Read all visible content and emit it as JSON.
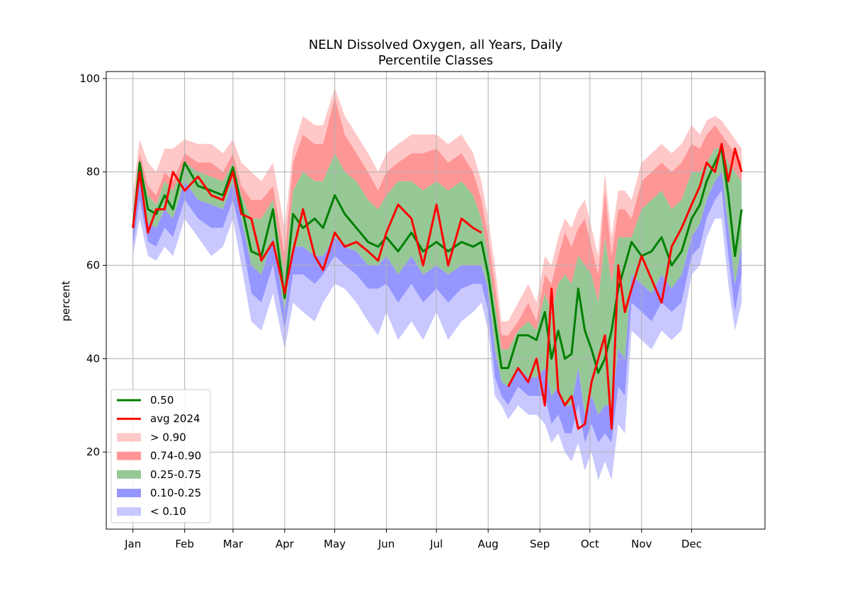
{
  "chart_data": {
    "type": "area",
    "title": "NELN Dissolved Oxygen, all Years, Daily",
    "subtitle": "Percentile Classes",
    "xlabel": "",
    "ylabel": "percent",
    "xlim": [
      -15,
      380
    ],
    "ylim": [
      3.5,
      101.5
    ],
    "x_ticks": [
      {
        "label": "Jan",
        "day": 1
      },
      {
        "label": "Feb",
        "day": 32
      },
      {
        "label": "Mar",
        "day": 61
      },
      {
        "label": "Apr",
        "day": 92
      },
      {
        "label": "May",
        "day": 122
      },
      {
        "label": "Jun",
        "day": 153
      },
      {
        "label": "Jul",
        "day": 183
      },
      {
        "label": "Aug",
        "day": 214
      },
      {
        "label": "Sep",
        "day": 245
      },
      {
        "label": "Oct",
        "day": 275
      },
      {
        "label": "Nov",
        "day": 306
      },
      {
        "label": "Dec",
        "day": 336
      }
    ],
    "y_ticks": [
      20,
      40,
      60,
      80,
      100
    ],
    "grid": true,
    "legend_position": "bottom-left",
    "x": [
      1,
      5,
      10,
      15,
      20,
      25,
      32,
      40,
      48,
      55,
      61,
      66,
      72,
      78,
      85,
      92,
      97,
      103,
      110,
      115,
      122,
      128,
      135,
      142,
      148,
      153,
      160,
      168,
      175,
      183,
      190,
      198,
      205,
      210,
      214,
      218,
      222,
      226,
      232,
      238,
      243,
      248,
      252,
      256,
      260,
      264,
      268,
      272,
      276,
      280,
      284,
      288,
      292,
      296,
      300,
      306,
      312,
      318,
      324,
      330,
      336,
      341,
      345,
      350,
      354,
      358,
      362,
      366
    ],
    "series": [
      {
        "name": "0.50",
        "color": "#008000",
        "values": [
          68,
          82,
          72,
          71,
          75,
          72,
          82,
          77,
          76,
          75,
          81,
          73,
          63,
          62,
          72,
          53,
          71,
          68,
          70,
          68,
          75,
          71,
          68,
          65,
          64,
          66,
          63,
          67,
          63,
          65,
          63,
          65,
          64,
          65,
          58,
          48,
          38,
          38,
          45,
          45,
          44,
          50,
          40,
          46,
          40,
          41,
          55,
          46,
          42,
          37,
          40,
          46,
          55,
          60,
          65,
          62,
          63,
          66,
          60,
          63,
          70,
          73,
          78,
          82,
          85,
          75,
          62,
          72
        ],
        "color_hint": "green"
      },
      {
        "name": "avg 2024",
        "color": "#ff0000",
        "values": [
          68,
          80,
          67,
          72,
          72,
          80,
          76,
          79,
          75,
          74,
          80,
          71,
          70,
          61,
          65,
          54,
          63,
          72,
          62,
          59,
          67,
          64,
          65,
          63,
          61,
          67,
          73,
          70,
          60,
          73,
          60,
          70,
          68,
          67,
          null,
          null,
          null,
          34,
          38,
          35,
          40,
          30,
          55,
          33,
          30,
          32,
          25,
          26,
          35,
          40,
          45,
          25,
          60,
          50,
          55,
          62,
          57,
          52,
          64,
          68,
          73,
          77,
          82,
          80,
          86,
          78,
          85,
          80
        ]
      }
    ],
    "bands": [
      {
        "name": "> 0.90",
        "color": "#ffc8c8",
        "lower": [
          70,
          84,
          77,
          75,
          80,
          78,
          84,
          82,
          82,
          80,
          84,
          77,
          74,
          74,
          77,
          62,
          82,
          88,
          86,
          86,
          96,
          88,
          84,
          80,
          76,
          80,
          82,
          84,
          84,
          85,
          82,
          84,
          80,
          74,
          66,
          56,
          45,
          45,
          48,
          52,
          48,
          58,
          56,
          62,
          67,
          64,
          68,
          70,
          64,
          58,
          76,
          62,
          72,
          72,
          70,
          78,
          80,
          82,
          80,
          82,
          86,
          85,
          88,
          90,
          88,
          86,
          84,
          82
        ],
        "upper": [
          75,
          87,
          82,
          80,
          85,
          85,
          87,
          86,
          86,
          84,
          87,
          82,
          80,
          78,
          82,
          68,
          85,
          92,
          90,
          90,
          98,
          92,
          88,
          84,
          80,
          84,
          86,
          88,
          88,
          88,
          86,
          88,
          84,
          78,
          70,
          60,
          48,
          48,
          52,
          56,
          52,
          62,
          60,
          66,
          70,
          68,
          72,
          74,
          68,
          62,
          80,
          66,
          76,
          76,
          74,
          82,
          84,
          86,
          84,
          86,
          90,
          88,
          91,
          92,
          91,
          89,
          87,
          85
        ]
      },
      {
        "name": "0.74-0.90",
        "color": "#ff9696",
        "lower": [
          69,
          82,
          75,
          73,
          78,
          76,
          82,
          80,
          79,
          78,
          82,
          75,
          70,
          70,
          74,
          58,
          76,
          80,
          78,
          78,
          84,
          80,
          78,
          74,
          72,
          75,
          78,
          78,
          76,
          78,
          76,
          78,
          75,
          70,
          62,
          52,
          42,
          42,
          46,
          48,
          46,
          54,
          50,
          56,
          58,
          56,
          62,
          60,
          58,
          52,
          66,
          56,
          66,
          66,
          66,
          72,
          74,
          76,
          72,
          74,
          80,
          80,
          82,
          85,
          85,
          82,
          80,
          78
        ],
        "upper": [
          70,
          84,
          77,
          75,
          80,
          78,
          84,
          82,
          82,
          80,
          84,
          77,
          74,
          74,
          77,
          62,
          82,
          88,
          86,
          86,
          96,
          88,
          84,
          80,
          76,
          80,
          82,
          84,
          84,
          85,
          82,
          84,
          80,
          74,
          66,
          56,
          45,
          45,
          48,
          52,
          48,
          58,
          56,
          62,
          67,
          64,
          68,
          70,
          64,
          58,
          76,
          62,
          72,
          72,
          70,
          78,
          80,
          82,
          80,
          82,
          86,
          85,
          88,
          90,
          88,
          86,
          84,
          82
        ]
      },
      {
        "name": "0.25-0.75",
        "color": "#96c896",
        "lower": [
          67,
          78,
          69,
          68,
          72,
          70,
          78,
          74,
          73,
          72,
          78,
          70,
          60,
          58,
          66,
          50,
          64,
          64,
          62,
          62,
          66,
          64,
          63,
          60,
          60,
          62,
          58,
          62,
          58,
          60,
          58,
          60,
          60,
          60,
          55,
          42,
          35,
          34,
          38,
          36,
          36,
          38,
          32,
          34,
          30,
          30,
          38,
          28,
          32,
          28,
          30,
          30,
          42,
          40,
          58,
          56,
          54,
          58,
          55,
          58,
          66,
          69,
          74,
          78,
          80,
          68,
          56,
          64
        ],
        "upper": [
          69,
          82,
          75,
          73,
          78,
          76,
          82,
          80,
          79,
          78,
          82,
          75,
          70,
          70,
          74,
          58,
          76,
          80,
          78,
          78,
          84,
          80,
          78,
          74,
          72,
          75,
          78,
          78,
          76,
          78,
          76,
          78,
          75,
          70,
          62,
          52,
          42,
          42,
          46,
          48,
          46,
          54,
          50,
          56,
          58,
          56,
          62,
          60,
          58,
          52,
          66,
          56,
          66,
          66,
          66,
          72,
          74,
          76,
          72,
          74,
          80,
          80,
          82,
          85,
          85,
          82,
          80,
          78
        ]
      },
      {
        "name": "0.10-0.25",
        "color": "#9696ff",
        "lower": [
          64,
          74,
          65,
          64,
          68,
          66,
          74,
          70,
          68,
          68,
          74,
          66,
          54,
          52,
          60,
          46,
          58,
          58,
          56,
          58,
          62,
          60,
          58,
          55,
          55,
          56,
          52,
          56,
          52,
          55,
          52,
          55,
          56,
          56,
          50,
          36,
          32,
          30,
          34,
          32,
          32,
          32,
          26,
          28,
          24,
          24,
          30,
          22,
          26,
          22,
          24,
          22,
          34,
          32,
          52,
          50,
          48,
          52,
          50,
          52,
          62,
          64,
          70,
          74,
          76,
          62,
          50,
          58
        ],
        "upper": [
          67,
          78,
          69,
          68,
          72,
          70,
          78,
          74,
          73,
          72,
          78,
          70,
          60,
          58,
          66,
          50,
          64,
          64,
          62,
          62,
          66,
          64,
          63,
          60,
          60,
          62,
          58,
          62,
          58,
          60,
          58,
          60,
          60,
          60,
          55,
          42,
          35,
          34,
          38,
          36,
          36,
          38,
          32,
          34,
          30,
          30,
          38,
          28,
          32,
          28,
          30,
          30,
          42,
          40,
          58,
          56,
          54,
          58,
          55,
          58,
          66,
          69,
          74,
          78,
          80,
          68,
          56,
          64
        ]
      },
      {
        "name": "< 0.10",
        "color": "#c8c8ff",
        "lower": [
          62,
          70,
          62,
          61,
          64,
          62,
          70,
          66,
          62,
          64,
          70,
          60,
          48,
          46,
          54,
          42,
          52,
          50,
          48,
          52,
          56,
          55,
          52,
          48,
          45,
          50,
          44,
          48,
          44,
          50,
          44,
          48,
          50,
          52,
          46,
          32,
          30,
          27,
          30,
          28,
          28,
          26,
          22,
          24,
          20,
          18,
          22,
          16,
          20,
          14,
          18,
          14,
          26,
          24,
          46,
          44,
          42,
          46,
          44,
          46,
          58,
          60,
          66,
          70,
          70,
          56,
          46,
          52
        ],
        "upper": [
          64,
          74,
          65,
          64,
          68,
          66,
          74,
          70,
          68,
          68,
          74,
          66,
          54,
          52,
          60,
          46,
          58,
          58,
          56,
          58,
          62,
          60,
          58,
          55,
          55,
          56,
          52,
          56,
          52,
          55,
          52,
          55,
          56,
          56,
          50,
          36,
          32,
          30,
          34,
          32,
          32,
          32,
          26,
          28,
          24,
          24,
          30,
          22,
          26,
          22,
          24,
          22,
          34,
          32,
          52,
          50,
          48,
          52,
          50,
          52,
          62,
          64,
          70,
          74,
          76,
          62,
          50,
          58
        ]
      }
    ]
  }
}
